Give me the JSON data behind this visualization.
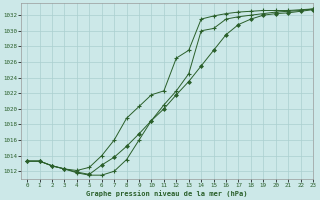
{
  "title": "Graphe pression niveau de la mer (hPa)",
  "xlim": [
    -0.5,
    23
  ],
  "ylim": [
    1011,
    1033.5
  ],
  "yticks": [
    1012,
    1014,
    1016,
    1018,
    1020,
    1022,
    1024,
    1026,
    1028,
    1030,
    1032
  ],
  "xticks": [
    0,
    1,
    2,
    3,
    4,
    5,
    6,
    7,
    8,
    9,
    10,
    11,
    12,
    13,
    14,
    15,
    16,
    17,
    18,
    19,
    20,
    21,
    22,
    23
  ],
  "bg_color": "#cce8e8",
  "line_color": "#2a5f2a",
  "grid_color": "#aacfcf",
  "series1_x": [
    0,
    1,
    2,
    3,
    4,
    5,
    6,
    7,
    8,
    9,
    10,
    11,
    12,
    13,
    14,
    15,
    16,
    17,
    18,
    19,
    20,
    21,
    22,
    23
  ],
  "series1_y": [
    1013.3,
    1013.3,
    1012.7,
    1012.3,
    1012.1,
    1012.5,
    1014.0,
    1016.0,
    1018.8,
    1020.3,
    1021.8,
    1022.3,
    1026.5,
    1027.5,
    1031.5,
    1031.9,
    1032.2,
    1032.4,
    1032.5,
    1032.6,
    1032.6,
    1032.6,
    1032.7,
    1032.8
  ],
  "series2_x": [
    0,
    1,
    2,
    3,
    4,
    5,
    6,
    7,
    8,
    9,
    10,
    11,
    12,
    13,
    14,
    15,
    16,
    17,
    18,
    19,
    20,
    21,
    22,
    23
  ],
  "series2_y": [
    1013.3,
    1013.3,
    1012.7,
    1012.3,
    1011.8,
    1011.5,
    1011.5,
    1012.0,
    1013.5,
    1016.0,
    1018.5,
    1020.5,
    1022.3,
    1024.5,
    1030.0,
    1030.3,
    1031.5,
    1031.8,
    1032.0,
    1032.2,
    1032.4,
    1032.5,
    1032.6,
    1032.8
  ],
  "series3_x": [
    0,
    1,
    2,
    3,
    4,
    5,
    6,
    7,
    8,
    9,
    10,
    11,
    12,
    13,
    14,
    15,
    16,
    17,
    18,
    19,
    20,
    21,
    22,
    23
  ],
  "series3_y": [
    1013.3,
    1013.3,
    1012.7,
    1012.3,
    1011.9,
    1011.6,
    1012.8,
    1013.8,
    1015.2,
    1016.8,
    1018.5,
    1020.0,
    1021.8,
    1023.5,
    1025.5,
    1027.5,
    1029.5,
    1030.8,
    1031.5,
    1032.0,
    1032.2,
    1032.3,
    1032.5,
    1032.7
  ]
}
